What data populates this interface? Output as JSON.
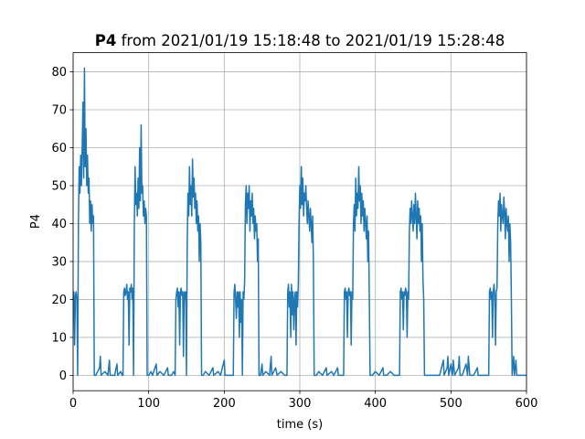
{
  "chart_data": {
    "type": "line",
    "title": {
      "bold": "P4",
      "text": "from 2021/01/19 15:18:48 to 2021/01/19 15:28:48"
    },
    "xlabel": "time (s)",
    "ylabel": "P4",
    "xlim": [
      0,
      600
    ],
    "ylim": [
      -4.05,
      85.05
    ],
    "xticks": [
      0,
      100,
      200,
      300,
      400,
      500,
      600
    ],
    "yticks": [
      0,
      10,
      20,
      30,
      40,
      50,
      60,
      70,
      80
    ],
    "grid": true,
    "color": "#1f77b4",
    "x": [
      0,
      1,
      2,
      3,
      4,
      5,
      6,
      7,
      8,
      9,
      10,
      11,
      12,
      13,
      14,
      15,
      16,
      17,
      18,
      19,
      20,
      21,
      22,
      23,
      24,
      25,
      26,
      27,
      28,
      30,
      35,
      36,
      37,
      42,
      46,
      48,
      49,
      55,
      58,
      59,
      63,
      65,
      66,
      67,
      68,
      69,
      70,
      71,
      72,
      73,
      74,
      75,
      76,
      77,
      78,
      79,
      80,
      81,
      82,
      83,
      84,
      85,
      86,
      87,
      88,
      89,
      90,
      91,
      92,
      93,
      94,
      95,
      96,
      97,
      98,
      100,
      103,
      105,
      110,
      111,
      115,
      120,
      125,
      126,
      130,
      133,
      135,
      136,
      137,
      138,
      139,
      140,
      141,
      142,
      143,
      144,
      145,
      146,
      147,
      148,
      149,
      150,
      151,
      152,
      153,
      154,
      155,
      156,
      157,
      158,
      159,
      160,
      161,
      162,
      163,
      164,
      165,
      166,
      167,
      168,
      169,
      170,
      172,
      175,
      180,
      185,
      186,
      192,
      195,
      200,
      201,
      205,
      210,
      212,
      213,
      214,
      215,
      216,
      217,
      218,
      219,
      220,
      221,
      222,
      223,
      224,
      225,
      226,
      227,
      228,
      229,
      230,
      231,
      232,
      233,
      234,
      235,
      236,
      237,
      238,
      239,
      240,
      241,
      242,
      243,
      244,
      245,
      246,
      248,
      250,
      251,
      255,
      260,
      262,
      263,
      268,
      270,
      275,
      280,
      283,
      284,
      285,
      286,
      287,
      288,
      289,
      290,
      291,
      292,
      293,
      294,
      295,
      296,
      297,
      298,
      299,
      300,
      301,
      302,
      303,
      304,
      305,
      306,
      307,
      308,
      309,
      310,
      311,
      312,
      313,
      314,
      315,
      316,
      317,
      318,
      319,
      322,
      325,
      330,
      335,
      336,
      342,
      345,
      350,
      351,
      355,
      358,
      359,
      360,
      361,
      362,
      363,
      364,
      365,
      366,
      367,
      368,
      369,
      370,
      371,
      372,
      373,
      374,
      375,
      376,
      377,
      378,
      379,
      380,
      381,
      382,
      383,
      384,
      385,
      386,
      387,
      388,
      389,
      390,
      391,
      392,
      393,
      396,
      400,
      405,
      410,
      411,
      415,
      420,
      425,
      430,
      432,
      433,
      434,
      435,
      436,
      437,
      438,
      439,
      440,
      441,
      442,
      443,
      444,
      445,
      446,
      447,
      448,
      449,
      450,
      451,
      452,
      453,
      454,
      455,
      456,
      457,
      458,
      459,
      460,
      461,
      462,
      463,
      464,
      465,
      468,
      475,
      485,
      490,
      491,
      495,
      496,
      497,
      500,
      502,
      503,
      505,
      510,
      511,
      512,
      515,
      520,
      522,
      523,
      525,
      530,
      535,
      536,
      545,
      548,
      550,
      551,
      552,
      553,
      554,
      555,
      556,
      557,
      558,
      559,
      560,
      561,
      562,
      563,
      564,
      565,
      566,
      567,
      568,
      569,
      570,
      571,
      572,
      573,
      574,
      575,
      576,
      577,
      578,
      579,
      580,
      581,
      583,
      584,
      586,
      587,
      590,
      600
    ],
    "values": [
      20,
      22,
      8,
      21,
      22,
      20,
      0,
      40,
      55,
      48,
      58,
      50,
      60,
      72,
      52,
      81,
      55,
      65,
      50,
      58,
      48,
      52,
      40,
      46,
      38,
      45,
      40,
      42,
      0,
      0,
      2,
      5,
      0,
      1,
      0,
      4,
      0,
      0,
      3,
      0,
      1,
      0,
      0,
      22,
      23,
      21,
      22,
      24,
      20,
      22,
      8,
      23,
      22,
      24,
      20,
      23,
      0,
      40,
      55,
      45,
      48,
      42,
      52,
      44,
      60,
      46,
      66,
      48,
      50,
      42,
      46,
      40,
      44,
      42,
      0,
      0,
      1,
      0,
      3,
      0,
      1,
      0,
      2,
      0,
      0,
      1,
      0,
      20,
      22,
      23,
      18,
      22,
      8,
      22,
      23,
      21,
      22,
      5,
      22,
      20,
      22,
      0,
      35,
      48,
      42,
      55,
      45,
      50,
      42,
      57,
      47,
      52,
      44,
      48,
      40,
      46,
      38,
      42,
      30,
      40,
      35,
      0,
      0,
      1,
      0,
      2,
      0,
      1,
      0,
      4,
      0,
      0,
      0,
      0,
      22,
      24,
      20,
      15,
      22,
      18,
      22,
      10,
      22,
      14,
      20,
      0,
      22,
      20,
      25,
      45,
      50,
      40,
      48,
      44,
      50,
      38,
      46,
      42,
      48,
      40,
      44,
      36,
      42,
      38,
      40,
      30,
      36,
      0,
      0,
      3,
      0,
      1,
      0,
      5,
      0,
      2,
      0,
      1,
      0,
      0,
      22,
      24,
      18,
      22,
      10,
      24,
      16,
      22,
      12,
      20,
      22,
      8,
      22,
      18,
      24,
      40,
      50,
      44,
      55,
      45,
      52,
      42,
      48,
      46,
      50,
      44,
      40,
      46,
      42,
      38,
      44,
      40,
      35,
      42,
      30,
      0,
      0,
      1,
      0,
      2,
      0,
      1,
      0,
      2,
      0,
      0,
      0,
      22,
      23,
      20,
      22,
      10,
      22,
      23,
      21,
      22,
      8,
      22,
      20,
      40,
      45,
      38,
      52,
      42,
      48,
      44,
      55,
      46,
      50,
      40,
      48,
      42,
      46,
      38,
      44,
      40,
      36,
      42,
      30,
      38,
      20,
      0,
      0,
      1,
      0,
      2,
      0,
      0,
      1,
      0,
      0,
      0,
      22,
      23,
      20,
      22,
      12,
      22,
      21,
      23,
      22,
      10,
      22,
      20,
      38,
      44,
      40,
      46,
      42,
      38,
      45,
      40,
      48,
      42,
      36,
      46,
      40,
      44,
      38,
      42,
      30,
      40,
      25,
      20,
      0,
      0,
      0,
      0,
      4,
      0,
      2,
      5,
      0,
      3,
      0,
      4,
      0,
      2,
      5,
      0,
      0,
      3,
      0,
      5,
      0,
      0,
      2,
      0,
      0,
      0,
      0,
      22,
      23,
      20,
      22,
      10,
      22,
      24,
      21,
      8,
      22,
      23,
      40,
      46,
      42,
      48,
      38,
      45,
      42,
      40,
      47,
      43,
      36,
      44,
      40,
      38,
      42,
      30,
      40,
      35,
      20,
      0,
      5,
      0,
      4,
      0,
      0,
      0
    ]
  }
}
